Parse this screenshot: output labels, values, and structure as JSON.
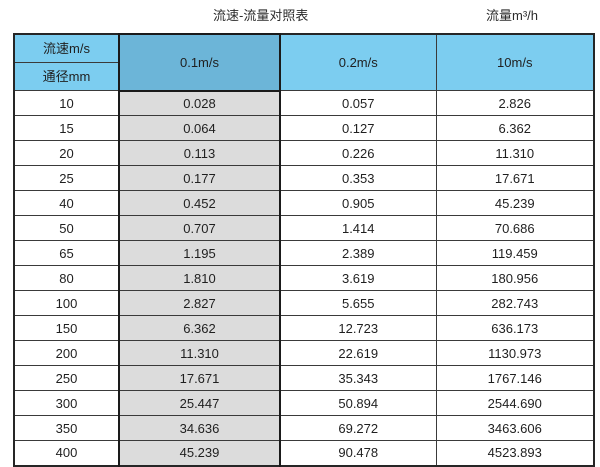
{
  "header": {
    "title": "流速-流量对照表",
    "unit_label": "流量m³/h"
  },
  "table": {
    "corner_top": "流速m/s",
    "corner_bottom": "通径mm",
    "columns": [
      "0.1m/s",
      "0.2m/s",
      "10m/s"
    ],
    "rows": [
      [
        "10",
        "0.028",
        "0.057",
        "2.826"
      ],
      [
        "15",
        "0.064",
        "0.127",
        "6.362"
      ],
      [
        "20",
        "0.113",
        "0.226",
        "11.310"
      ],
      [
        "25",
        "0.177",
        "0.353",
        "17.671"
      ],
      [
        "40",
        "0.452",
        "0.905",
        "45.239"
      ],
      [
        "50",
        "0.707",
        "1.414",
        "70.686"
      ],
      [
        "65",
        "1.195",
        "2.389",
        "119.459"
      ],
      [
        "80",
        "1.810",
        "3.619",
        "180.956"
      ],
      [
        "100",
        "2.827",
        "5.655",
        "282.743"
      ],
      [
        "150",
        "6.362",
        "12.723",
        "636.173"
      ],
      [
        "200",
        "11.310",
        "22.619",
        "1130.973"
      ],
      [
        "250",
        "17.671",
        "35.343",
        "1767.146"
      ],
      [
        "300",
        "25.447",
        "50.894",
        "2544.690"
      ],
      [
        "350",
        "34.636",
        "69.272",
        "3463.606"
      ],
      [
        "400",
        "45.239",
        "90.478",
        "4523.893"
      ]
    ]
  },
  "colors": {
    "header_light_blue": "#7ccdf0",
    "header_dark_blue": "#6cb5d8",
    "highlight_column_gray": "#dcdcdc",
    "border_dark": "#1a1a1a"
  },
  "chart_data": {
    "type": "table",
    "title": "流速-流量对照表",
    "col_header": "流速m/s",
    "row_header": "通径mm",
    "unit": "流量m³/h",
    "categories": [
      10,
      15,
      20,
      25,
      40,
      50,
      65,
      80,
      100,
      150,
      200,
      250,
      300,
      350,
      400
    ],
    "series": [
      {
        "name": "0.1m/s",
        "values": [
          0.028,
          0.064,
          0.113,
          0.177,
          0.452,
          0.707,
          1.195,
          1.81,
          2.827,
          6.362,
          11.31,
          17.671,
          25.447,
          34.636,
          45.239
        ]
      },
      {
        "name": "0.2m/s",
        "values": [
          0.057,
          0.127,
          0.226,
          0.353,
          0.905,
          1.414,
          2.389,
          3.619,
          5.655,
          12.723,
          22.619,
          35.343,
          50.894,
          69.272,
          90.478
        ]
      },
      {
        "name": "10m/s",
        "values": [
          2.826,
          6.362,
          11.31,
          17.671,
          45.239,
          70.686,
          119.459,
          180.956,
          282.743,
          636.173,
          1130.973,
          1767.146,
          2544.69,
          3463.606,
          4523.893
        ]
      }
    ]
  }
}
